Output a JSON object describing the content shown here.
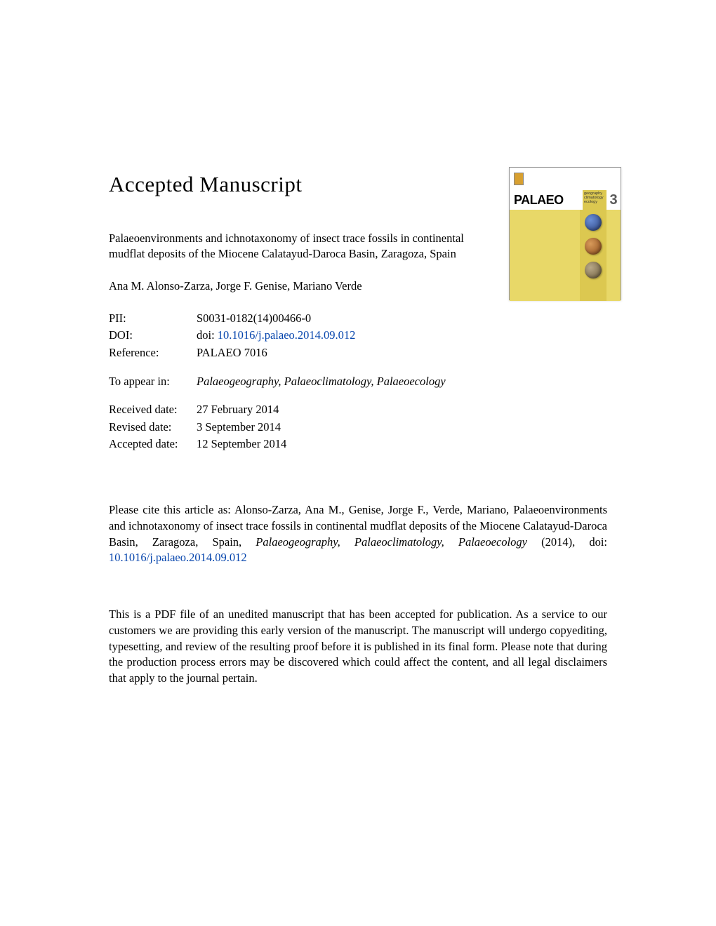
{
  "heading": "Accepted Manuscript",
  "article_title": "Palaeoenvironments and ichnotaxonomy of insect trace fossils in continental mudflat deposits of the Miocene Calatayud-Daroca Basin, Zaragoza, Spain",
  "authors": "Ana M. Alonso-Zarza, Jorge F. Genise, Mariano Verde",
  "meta": {
    "pii_label": "PII:",
    "pii_value": "S0031-0182(14)00466-0",
    "doi_label": "DOI:",
    "doi_prefix": "doi: ",
    "doi_link": "10.1016/j.palaeo.2014.09.012",
    "ref_label": "Reference:",
    "ref_value": "PALAEO 7016"
  },
  "appear": {
    "label": "To appear in:",
    "journal": "Palaeogeography, Palaeoclimatology, Palaeoecology"
  },
  "dates": {
    "received_label": "Received date:",
    "received_value": "27 February 2014",
    "revised_label": "Revised date:",
    "revised_value": "3 September 2014",
    "accepted_label": "Accepted date:",
    "accepted_value": "12 September 2014"
  },
  "citation": {
    "prefix": "Please cite this article as:  Alonso-Zarza, Ana M., Genise, Jorge F., Verde, Mariano, Palaeoenvironments and ichnotaxonomy of insect trace fossils in continental mudflat deposits of the Miocene Calatayud-Daroca Basin, Zaragoza, Spain, ",
    "journal": "Palaeogeography, Palaeoclimatology, Palaeoecology",
    "year": " (2014),  doi: ",
    "doi_link": "10.1016/j.palaeo.2014.09.012"
  },
  "disclaimer": "This is a PDF file of an unedited manuscript that has been accepted for publication. As a service to our customers we are providing this early version of the manuscript. The manuscript will undergo copyediting, typesetting, and review of the resulting proof before it is published in its final form. Please note that during the production process errors may be discovered which could affect the content, and all legal disclaimers that apply to the journal pertain.",
  "cover": {
    "brand": "PALAEO",
    "sub1": "geography",
    "sub2": "climatology",
    "sub3": "ecology",
    "three": "3"
  },
  "colors": {
    "link": "#0645ad",
    "cover_bg": "#e8d868",
    "cover_accent": "#dcc850"
  }
}
